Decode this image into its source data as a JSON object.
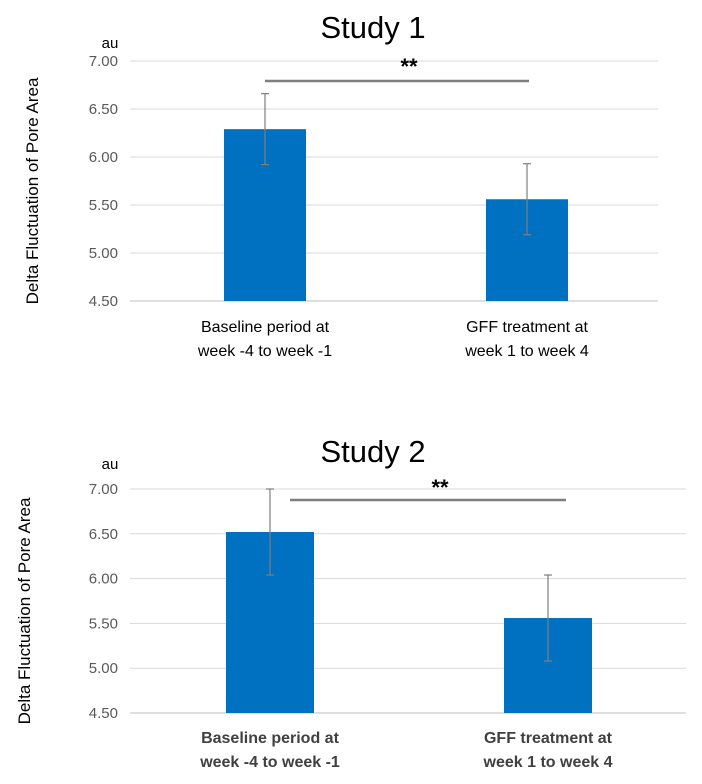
{
  "chart_data": [
    {
      "type": "bar",
      "title": "Study 1",
      "ylabel": "Delta Fluctuation of Pore Area",
      "unit_label": "au",
      "categories": [
        [
          "Baseline period at",
          "week -4 to week -1"
        ],
        [
          "GFF treatment at",
          "week 1 to week 4"
        ]
      ],
      "values": [
        6.29,
        5.56
      ],
      "error": [
        0.37,
        0.37
      ],
      "ylim": [
        4.5,
        7.0
      ],
      "yticks": [
        "4.50",
        "5.00",
        "5.50",
        "6.00",
        "6.50",
        "7.00"
      ],
      "significance": "**",
      "grid": true,
      "bar_color": "#0070C0",
      "category_bold": false
    },
    {
      "type": "bar",
      "title": "Study 2",
      "ylabel": "Delta Fluctuation of Pore Area",
      "unit_label": "au",
      "categories": [
        [
          "Baseline period at",
          "week -4 to week -1"
        ],
        [
          "GFF treatment at",
          "week 1 to week 4"
        ]
      ],
      "values": [
        6.52,
        5.56
      ],
      "error": [
        0.48,
        0.48
      ],
      "ylim": [
        4.5,
        7.0
      ],
      "yticks": [
        "4.50",
        "5.00",
        "5.50",
        "6.00",
        "6.50",
        "7.00"
      ],
      "significance": "**",
      "grid": true,
      "bar_color": "#0070C0",
      "category_bold": true
    }
  ]
}
